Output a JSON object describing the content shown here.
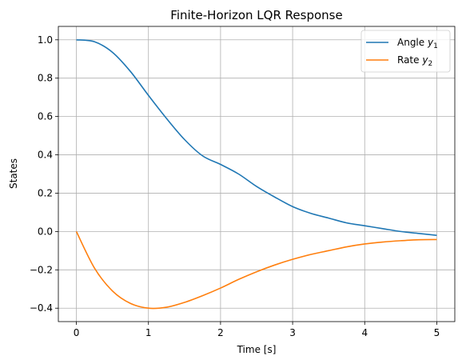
{
  "chart_data": {
    "type": "line",
    "title": "Finite-Horizon LQR Response",
    "xlabel": "Time [s]",
    "ylabel": "States",
    "xlim": [
      -0.25,
      5.25
    ],
    "ylim": [
      -0.47,
      1.07
    ],
    "xticks": [
      0,
      1,
      2,
      3,
      4,
      5
    ],
    "xtick_labels": [
      "0",
      "1",
      "2",
      "3",
      "4",
      "5"
    ],
    "yticks": [
      -0.4,
      -0.2,
      0.0,
      0.2,
      0.4,
      0.6,
      0.8,
      1.0
    ],
    "ytick_labels": [
      "−0.4",
      "−0.2",
      "0.0",
      "0.2",
      "0.4",
      "0.6",
      "0.8",
      "1.0"
    ],
    "grid": true,
    "legend_position": "top-right",
    "series": [
      {
        "name_prefix": "Angle ",
        "name_var": "y",
        "name_sub": "1",
        "color": "#1f77b4",
        "x": [
          0,
          0.25,
          0.5,
          0.75,
          1.0,
          1.25,
          1.5,
          1.75,
          2.0,
          2.25,
          2.5,
          2.75,
          3.0,
          3.25,
          3.5,
          3.75,
          4.0,
          4.25,
          4.5,
          4.75,
          5.0
        ],
        "y": [
          1.0,
          0.99,
          0.935,
          0.835,
          0.71,
          0.59,
          0.48,
          0.395,
          0.35,
          0.3,
          0.235,
          0.18,
          0.13,
          0.095,
          0.07,
          0.045,
          0.03,
          0.015,
          0.0,
          -0.01,
          -0.02
        ]
      },
      {
        "name_prefix": "Rate ",
        "name_var": "y",
        "name_sub": "2",
        "color": "#ff7f0e",
        "x": [
          0,
          0.25,
          0.5,
          0.75,
          1.0,
          1.25,
          1.5,
          1.75,
          2.0,
          2.25,
          2.5,
          2.75,
          3.0,
          3.25,
          3.5,
          3.75,
          4.0,
          4.25,
          4.5,
          4.75,
          5.0
        ],
        "y": [
          0.0,
          -0.19,
          -0.31,
          -0.375,
          -0.4,
          -0.395,
          -0.37,
          -0.335,
          -0.295,
          -0.25,
          -0.21,
          -0.175,
          -0.145,
          -0.12,
          -0.1,
          -0.08,
          -0.065,
          -0.055,
          -0.048,
          -0.043,
          -0.042
        ]
      }
    ]
  }
}
